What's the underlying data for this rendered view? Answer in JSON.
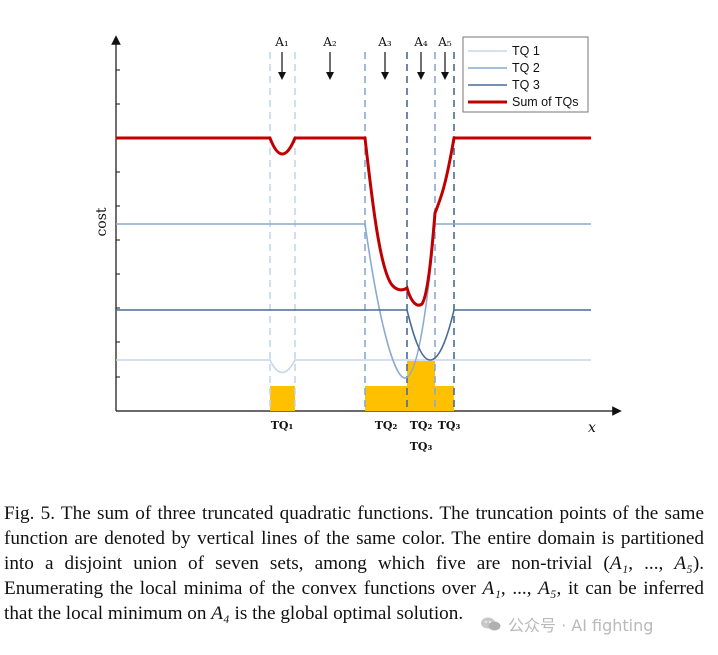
{
  "figure": {
    "chart_data": {
      "type": "line",
      "xlabel": "x",
      "ylabel": "cost",
      "legend_position": "top-right",
      "series": [
        {
          "name": "TQ 1",
          "color": "#c5d5ea"
        },
        {
          "name": "TQ 2",
          "color": "#8aaad0"
        },
        {
          "name": "TQ 3",
          "color": "#4a6b96"
        },
        {
          "name": "Sum of TQs",
          "color": "#c00000"
        }
      ],
      "region_labels": [
        "A₁",
        "A₂",
        "A₃",
        "A₄",
        "A₅"
      ],
      "interval_labels": [
        "TQ₁",
        "TQ₂",
        "TQ₂",
        "TQ₃",
        "TQ₃"
      ],
      "interval_color": "#ffc000"
    }
  },
  "caption": {
    "prefix": "Fig. 5.",
    "part1": " The sum of three truncated quadratic functions. The truncation points of the same function are denoted by vertical lines of the same color. The entire domain is partitioned into a disjoint union of seven sets, among which five are non-trivial (",
    "math_A1": "A₁",
    "sep1": ", ..., ",
    "math_A5": "A₅",
    "part2": "). Enumerating the local minima of the convex functions over ",
    "math_A1b": "A₁",
    "sep2": ", ..., ",
    "math_A5b": "A₅",
    "part3": ", it can be inferred that the local minimum on ",
    "math_A4": "A₄",
    "part4": " is the global optimal solution."
  },
  "watermark": {
    "text": "公众号 · AI fighting",
    "icon": "wechat-icon"
  }
}
